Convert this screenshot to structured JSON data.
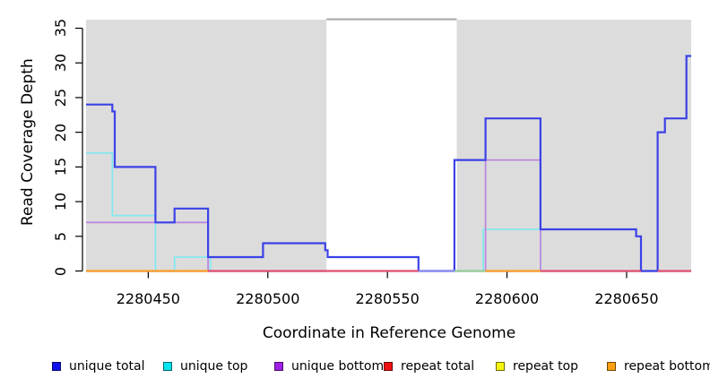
{
  "chart_data": {
    "type": "line",
    "subtype": "step-coverage",
    "title": "",
    "xlabel": "Coordinate in Reference Genome",
    "ylabel": "Read Coverage Depth",
    "x_ticks": [
      2280450,
      2280500,
      2280550,
      2280600,
      2280650
    ],
    "y_ticks": [
      0,
      5,
      10,
      15,
      20,
      25,
      30,
      35
    ],
    "xlim": [
      2280424,
      2280677
    ],
    "ylim": [
      0,
      36.3
    ],
    "grid": false,
    "legend_position": "bottom",
    "plot_background": "#FFFFFF",
    "shaded_region_color": "#DCDCDC",
    "shaded_regions": [
      {
        "x1": 2280424,
        "x2": 2280524.5,
        "label": "alignment-block-1"
      },
      {
        "x1": 2280579,
        "x2": 2280677,
        "label": "alignment-block-2"
      }
    ],
    "gap_connector": {
      "x1": 2280524.5,
      "x2": 2280579,
      "color": "#A6A6A6"
    },
    "series": [
      {
        "name": "unique total",
        "legend_color": "#1111EE",
        "line_color": "#3B42E6",
        "x_end": 2280677,
        "steps": [
          [
            2280424,
            24
          ],
          [
            2280435,
            23
          ],
          [
            2280436,
            15
          ],
          [
            2280453,
            7
          ],
          [
            2280461,
            9
          ],
          [
            2280475,
            2
          ],
          [
            2280498,
            4
          ],
          [
            2280524,
            3
          ],
          [
            2280525,
            2
          ],
          [
            2280563,
            0
          ],
          [
            2280578,
            16
          ],
          [
            2280591,
            22
          ],
          [
            2280614,
            6
          ],
          [
            2280654,
            5
          ],
          [
            2280656,
            0
          ],
          [
            2280663,
            20
          ],
          [
            2280666,
            22
          ],
          [
            2280675,
            31
          ]
        ]
      },
      {
        "name": "unique top",
        "legend_color": "#00E5EE",
        "line_color": "#85E8EE",
        "x_end": 2280677,
        "steps": [
          [
            2280424,
            17
          ],
          [
            2280435,
            8
          ],
          [
            2280453,
            0
          ],
          [
            2280461,
            2
          ],
          [
            2280476,
            0
          ],
          [
            2280590,
            6
          ],
          [
            2280614,
            0
          ]
        ]
      },
      {
        "name": "unique bottom",
        "legend_color": "#A21FE8",
        "line_color": "#BD88DE",
        "x_end": 2280677,
        "steps": [
          [
            2280424,
            7
          ],
          [
            2280475,
            0
          ],
          [
            2280591,
            16
          ],
          [
            2280614,
            0
          ]
        ]
      },
      {
        "name": "repeat total",
        "legend_color": "#EE1111",
        "line_color": "#E14F72",
        "runs": [
          [
            2280424,
            2280563,
            0
          ],
          [
            2280614,
            2280677,
            0
          ]
        ]
      },
      {
        "name": "repeat top",
        "legend_color": "#F5F511",
        "line_color": "#98CD9C",
        "runs": [
          [
            2280578,
            2280591,
            0
          ]
        ]
      },
      {
        "name": "repeat bottom",
        "legend_color": "#FB9E12",
        "line_color": "#FF9C2A",
        "runs": [
          [
            2280424,
            2280475,
            0
          ],
          [
            2280591,
            2280614,
            0
          ]
        ]
      }
    ],
    "baseline_segments": [
      {
        "x1": 2280424,
        "x2": 2280475,
        "color": "#FF9C2A",
        "series": "repeat bottom"
      },
      {
        "x1": 2280475,
        "x2": 2280563,
        "color": "#E14F72",
        "series": "repeat total"
      },
      {
        "x1": 2280563,
        "x2": 2280578,
        "color": "#8B8BEF",
        "series": "unique total at 0"
      },
      {
        "x1": 2280578,
        "x2": 2280591,
        "color": "#98CD9C",
        "series": "repeat top over unique top"
      },
      {
        "x1": 2280591,
        "x2": 2280614,
        "color": "#FF9C2A",
        "series": "repeat bottom"
      },
      {
        "x1": 2280614,
        "x2": 2280656,
        "color": "#E14F72",
        "series": "repeat total"
      },
      {
        "x1": 2280663,
        "x2": 2280677,
        "color": "#E14F72",
        "series": "repeat total"
      }
    ],
    "legend": [
      {
        "label": "unique total",
        "color": "#1111EE"
      },
      {
        "label": "unique top",
        "color": "#00E5EE"
      },
      {
        "label": "unique bottom",
        "color": "#A21FE8"
      },
      {
        "label": "repeat total",
        "color": "#EE1111"
      },
      {
        "label": "repeat top",
        "color": "#F5F511"
      },
      {
        "label": "repeat bottom",
        "color": "#FB9E12"
      }
    ]
  }
}
